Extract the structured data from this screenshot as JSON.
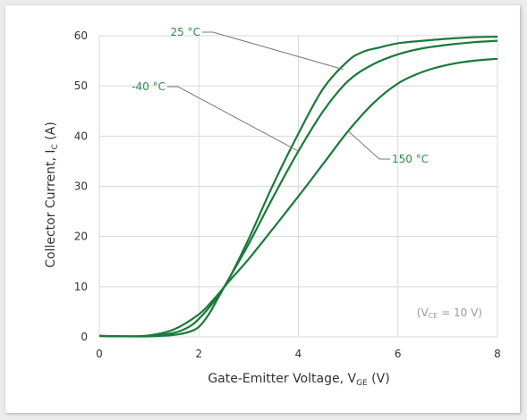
{
  "chart_data": {
    "type": "line",
    "xlabel": {
      "main": "Gate-Emitter Voltage, V",
      "sub": "GE",
      "unit": " (V)"
    },
    "ylabel": {
      "main": "Collector Current, I",
      "sub": "C",
      "unit": " (A)"
    },
    "xlim": [
      0,
      8
    ],
    "ylim": [
      0,
      60
    ],
    "xticks": [
      0,
      2,
      4,
      6,
      8
    ],
    "yticks": [
      0,
      10,
      20,
      30,
      40,
      50,
      60
    ],
    "grid": true,
    "condition": {
      "pre": "(V",
      "sub": "CE",
      "post": " = 10 V)"
    },
    "line_color": "#1a7a3a",
    "label_color": "#2e8b47",
    "series": [
      {
        "name": "25 °C",
        "x": [
          0,
          0.5,
          1.0,
          1.5,
          1.8,
          2.0,
          2.3,
          2.6,
          3.0,
          3.5,
          4.0,
          4.5,
          5.0,
          5.3,
          5.6,
          6.0,
          6.5,
          7.0,
          7.5,
          8.0
        ],
        "y": [
          0.2,
          0.1,
          0.2,
          0.8,
          2.0,
          3.6,
          7.0,
          11.5,
          19.5,
          30.5,
          40.5,
          49.5,
          55.0,
          56.8,
          57.6,
          58.5,
          59.0,
          59.4,
          59.7,
          59.8
        ]
      },
      {
        "name": "-40 °C",
        "x": [
          0,
          0.5,
          1.0,
          1.5,
          1.8,
          2.0,
          2.2,
          2.4,
          2.6,
          3.0,
          3.5,
          4.0,
          4.5,
          5.0,
          5.5,
          6.0,
          6.5,
          7.0,
          7.5,
          8.0
        ],
        "y": [
          0.2,
          0.1,
          0.1,
          0.4,
          1.0,
          2.0,
          4.5,
          8.0,
          11.5,
          18.5,
          28.0,
          37.0,
          45.0,
          51.0,
          54.3,
          56.3,
          57.5,
          58.2,
          58.7,
          59.0
        ]
      },
      {
        "name": "150 °C",
        "x": [
          0,
          0.5,
          1.0,
          1.5,
          2.0,
          2.3,
          2.6,
          3.0,
          3.5,
          4.0,
          4.5,
          5.0,
          5.5,
          6.0,
          6.5,
          7.0,
          7.5,
          8.0
        ],
        "y": [
          0.2,
          0.1,
          0.3,
          1.5,
          4.5,
          7.5,
          11.0,
          15.5,
          21.7,
          28.0,
          34.5,
          41.0,
          46.5,
          50.5,
          52.8,
          54.2,
          55.0,
          55.4
        ]
      }
    ],
    "annotations": [
      {
        "text": "25 °C",
        "target": [
          4.9,
          53.3
        ]
      },
      {
        "text": "-40 °C",
        "target": [
          4.0,
          37.0
        ]
      },
      {
        "text": "150 °C",
        "target": [
          5.0,
          41.0
        ]
      }
    ]
  }
}
